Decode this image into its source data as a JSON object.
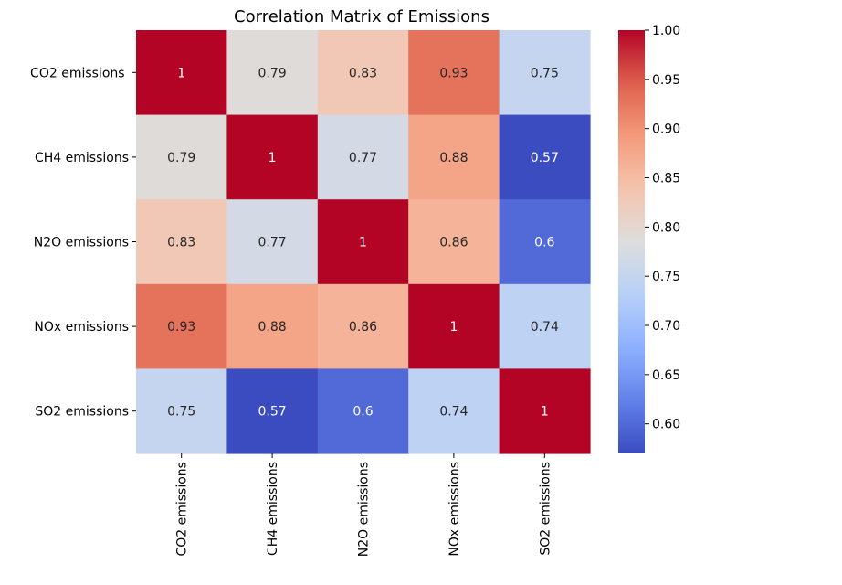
{
  "chart_data": {
    "type": "heatmap",
    "title": "Correlation Matrix of Emissions",
    "rows": [
      "CO2 emissions ",
      "CH4 emissions",
      "N2O emissions",
      "NOx emissions",
      "SO2 emissions"
    ],
    "columns": [
      "CO2 emissions",
      "CH4 emissions",
      "N2O emissions",
      "NOx emissions",
      "SO2 emissions"
    ],
    "values": [
      [
        1.0,
        0.79,
        0.83,
        0.93,
        0.75
      ],
      [
        0.79,
        1.0,
        0.77,
        0.88,
        0.57
      ],
      [
        0.83,
        0.77,
        1.0,
        0.86,
        0.6
      ],
      [
        0.93,
        0.88,
        0.86,
        1.0,
        0.74
      ],
      [
        0.75,
        0.57,
        0.6,
        0.74,
        1.0
      ]
    ],
    "annotations": [
      [
        "1",
        "0.79",
        "0.83",
        "0.93",
        "0.75"
      ],
      [
        "0.79",
        "1",
        "0.77",
        "0.88",
        "0.57"
      ],
      [
        "0.83",
        "0.77",
        "1",
        "0.86",
        "0.6"
      ],
      [
        "0.93",
        "0.88",
        "0.86",
        "1",
        "0.74"
      ],
      [
        "0.75",
        "0.57",
        "0.6",
        "0.74",
        "1"
      ]
    ],
    "colormap": "coolwarm",
    "vmin": 0.57,
    "vmax": 1.0,
    "colorbar": {
      "ticks": [
        0.6,
        0.65,
        0.7,
        0.75,
        0.8,
        0.85,
        0.9,
        0.95,
        1.0
      ],
      "tick_labels": [
        "0.60",
        "0.65",
        "0.70",
        "0.75",
        "0.80",
        "0.85",
        "0.90",
        "0.95",
        "1.00"
      ]
    },
    "xlabel": "",
    "ylabel": ""
  }
}
